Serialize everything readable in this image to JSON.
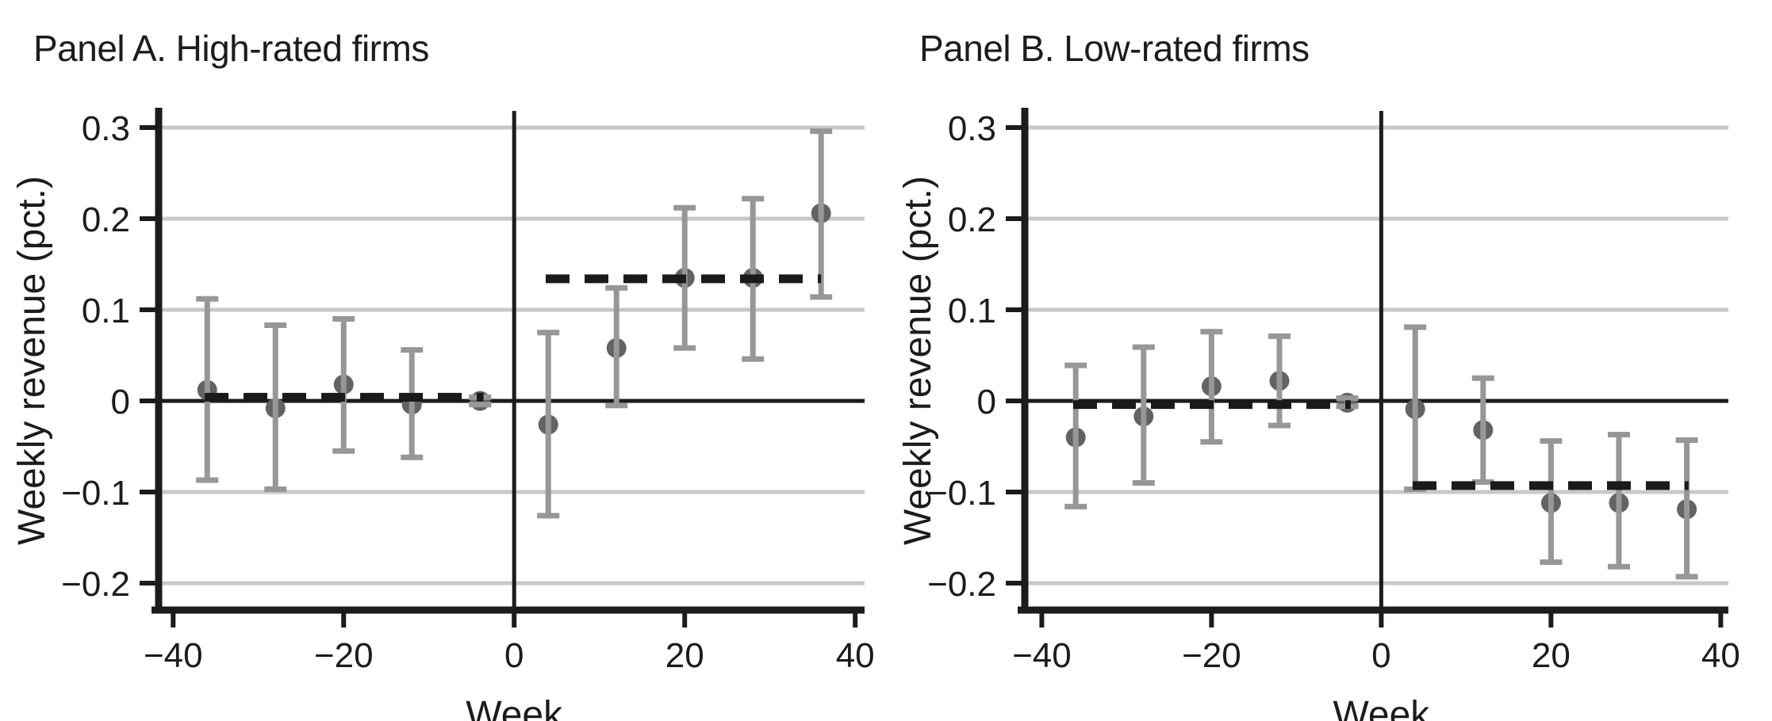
{
  "figure": {
    "background": "#ffffff",
    "style": {
      "point_color": "#636366",
      "error_bar_color": "#97979a",
      "grid_color": "#c8c8ca",
      "axis_color": "#1c1c1c",
      "zero_line_color": "#1c1c1c",
      "event_line_color": "#1c1c1c",
      "dashed_line_color": "#1a1a1a",
      "text_color": "#1c1c1c"
    }
  },
  "chart_data": [
    {
      "type": "scatter",
      "panel": "A",
      "title": "Panel A. High-rated firms",
      "xlabel": "Week",
      "ylabel": "Weekly revenue (pct.)",
      "xlim": [
        -41.7,
        41.1
      ],
      "ylim": [
        -0.2296,
        0.3183
      ],
      "x_ticks": [
        -40,
        -20,
        0,
        20,
        40
      ],
      "x_tick_labels": [
        "−40",
        "−20",
        "0",
        "20",
        "40"
      ],
      "y_ticks": [
        0.3,
        0.2,
        0.1,
        0,
        -0.1,
        -0.2
      ],
      "y_tick_labels": [
        "0.3",
        "0.2",
        "0.1",
        "0",
        "−0.1",
        "−0.2"
      ],
      "grid": true,
      "legend": "none",
      "event_line_x": 0,
      "zero_line_y": 0,
      "points": [
        {
          "week": -36,
          "est": 0.012,
          "lo": -0.087,
          "hi": 0.112
        },
        {
          "week": -28,
          "est": -0.008,
          "lo": -0.097,
          "hi": 0.083
        },
        {
          "week": -20,
          "est": 0.018,
          "lo": -0.055,
          "hi": 0.09
        },
        {
          "week": -12,
          "est": -0.004,
          "lo": -0.062,
          "hi": 0.056
        },
        {
          "week": -4,
          "est": 0.0,
          "lo": -0.004,
          "hi": 0.004
        },
        {
          "week": 4,
          "est": -0.026,
          "lo": -0.126,
          "hi": 0.075
        },
        {
          "week": 12,
          "est": 0.058,
          "lo": -0.005,
          "hi": 0.124
        },
        {
          "week": 20,
          "est": 0.135,
          "lo": 0.058,
          "hi": 0.212
        },
        {
          "week": 28,
          "est": 0.135,
          "lo": 0.046,
          "hi": 0.222
        },
        {
          "week": 36,
          "est": 0.206,
          "lo": 0.114,
          "hi": 0.296
        }
      ],
      "dashed_mean_segments": [
        {
          "x0": -36.3,
          "x1": -3.6,
          "y": 0.004
        },
        {
          "x0": 3.7,
          "x1": 36.0,
          "y": 0.134
        }
      ]
    },
    {
      "type": "scatter",
      "panel": "B",
      "title": "Panel B. Low-rated firms",
      "xlabel": "Week",
      "ylabel": "Weekly revenue (pct.)",
      "xlim": [
        -42.0,
        40.9
      ],
      "ylim": [
        -0.2296,
        0.3183
      ],
      "x_ticks": [
        -40,
        -20,
        0,
        20,
        40
      ],
      "x_tick_labels": [
        "−40",
        "−20",
        "0",
        "20",
        "40"
      ],
      "y_ticks": [
        0.3,
        0.2,
        0.1,
        0,
        -0.1,
        -0.2
      ],
      "y_tick_labels": [
        "0.3",
        "0.2",
        "0.1",
        "0",
        "−0.1",
        "−0.2"
      ],
      "grid": true,
      "legend": "none",
      "event_line_x": 0,
      "zero_line_y": 0,
      "points": [
        {
          "week": -36,
          "est": -0.04,
          "lo": -0.116,
          "hi": 0.039
        },
        {
          "week": -28,
          "est": -0.017,
          "lo": -0.09,
          "hi": 0.059
        },
        {
          "week": -20,
          "est": 0.016,
          "lo": -0.045,
          "hi": 0.076
        },
        {
          "week": -12,
          "est": 0.022,
          "lo": -0.027,
          "hi": 0.071
        },
        {
          "week": -4,
          "est": -0.002,
          "lo": -0.006,
          "hi": 0.003
        },
        {
          "week": 4,
          "est": -0.009,
          "lo": -0.097,
          "hi": 0.081
        },
        {
          "week": 12,
          "est": -0.032,
          "lo": -0.089,
          "hi": 0.025
        },
        {
          "week": 20,
          "est": -0.112,
          "lo": -0.177,
          "hi": -0.044
        },
        {
          "week": 28,
          "est": -0.112,
          "lo": -0.182,
          "hi": -0.037
        },
        {
          "week": 36,
          "est": -0.119,
          "lo": -0.193,
          "hi": -0.043
        }
      ],
      "dashed_mean_segments": [
        {
          "x0": -36.3,
          "x1": -3.6,
          "y": -0.004
        },
        {
          "x0": 3.7,
          "x1": 36.2,
          "y": -0.093
        }
      ]
    }
  ]
}
